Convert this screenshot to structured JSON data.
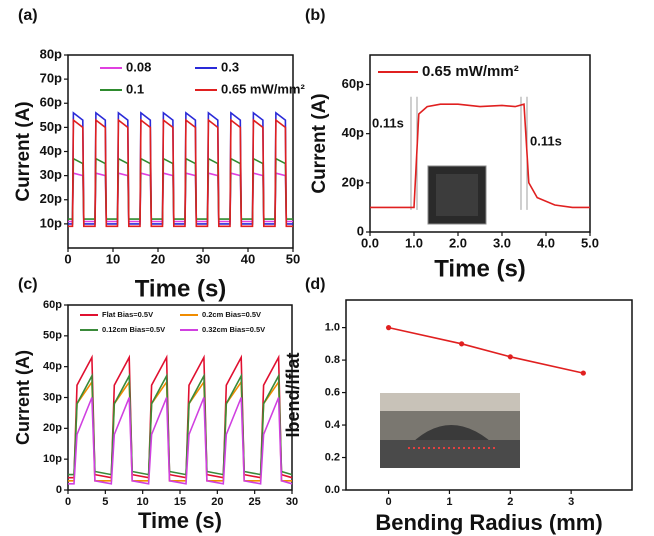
{
  "chart_data": [
    {
      "type": "line",
      "label": "(a)",
      "xlabel": "Time (s)",
      "ylabel": "Current (A)",
      "xlim": [
        0,
        50
      ],
      "xticks": [
        0,
        10,
        20,
        30,
        40,
        50
      ],
      "ylim": [
        0,
        8e-11
      ],
      "yticks": [
        {
          "value": 1e-11,
          "label": "10p"
        },
        {
          "value": 2e-11,
          "label": "20p"
        },
        {
          "value": 3e-11,
          "label": "30p"
        },
        {
          "value": 4e-11,
          "label": "40p"
        },
        {
          "value": 5e-11,
          "label": "50p"
        },
        {
          "value": 6e-11,
          "label": "60p"
        },
        {
          "value": 7e-11,
          "label": "70p"
        },
        {
          "value": 8e-11,
          "label": "80p"
        }
      ],
      "x": [
        0,
        1,
        1.2,
        3.3,
        3.5,
        6,
        6.2,
        8.3,
        8.5,
        11,
        11.2,
        13.3,
        13.5,
        16,
        16.2,
        18.3,
        18.5,
        21,
        21.2,
        23.3,
        23.5,
        26,
        26.2,
        28.3,
        28.5,
        31,
        31.2,
        33.3,
        33.5,
        36,
        36.2,
        38.3,
        38.5,
        41,
        41.2,
        43.3,
        43.5,
        46,
        46.2,
        48.3,
        48.5,
        50
      ],
      "series": [
        {
          "name": "0.08",
          "color": "#e040e0",
          "values": [
            1.1e-11,
            1.1e-11,
            3.1e-11,
            3e-11,
            1.1e-11,
            1.1e-11,
            3.1e-11,
            3e-11,
            1.1e-11,
            1.1e-11,
            3.1e-11,
            3e-11,
            1.1e-11,
            1.1e-11,
            3.1e-11,
            3e-11,
            1.1e-11,
            1.1e-11,
            3.1e-11,
            3e-11,
            1.1e-11,
            1.1e-11,
            3.1e-11,
            3e-11,
            1.1e-11,
            1.1e-11,
            3.1e-11,
            3e-11,
            1.1e-11,
            1.1e-11,
            3.1e-11,
            3e-11,
            1.1e-11,
            1.1e-11,
            3.1e-11,
            3e-11,
            1.1e-11,
            1.1e-11,
            3.1e-11,
            3e-11,
            1.1e-11,
            1.1e-11
          ]
        },
        {
          "name": "0.3",
          "color": "#2a2ad8",
          "values": [
            1e-11,
            1e-11,
            5.6e-11,
            5.3e-11,
            1e-11,
            1e-11,
            5.6e-11,
            5.3e-11,
            1e-11,
            1e-11,
            5.6e-11,
            5.3e-11,
            1e-11,
            1e-11,
            5.6e-11,
            5.3e-11,
            1e-11,
            1e-11,
            5.6e-11,
            5.3e-11,
            1e-11,
            1e-11,
            5.6e-11,
            5.3e-11,
            1e-11,
            1e-11,
            5.6e-11,
            5.3e-11,
            1e-11,
            1e-11,
            5.6e-11,
            5.3e-11,
            1e-11,
            1e-11,
            5.6e-11,
            5.3e-11,
            1e-11,
            1e-11,
            5.6e-11,
            5.3e-11,
            1e-11,
            1e-11
          ]
        },
        {
          "name": "0.1",
          "color": "#2e8b2e",
          "values": [
            1.2e-11,
            1.2e-11,
            3.7e-11,
            3.5e-11,
            1.2e-11,
            1.2e-11,
            3.7e-11,
            3.5e-11,
            1.2e-11,
            1.2e-11,
            3.7e-11,
            3.5e-11,
            1.2e-11,
            1.2e-11,
            3.7e-11,
            3.5e-11,
            1.2e-11,
            1.2e-11,
            3.7e-11,
            3.5e-11,
            1.2e-11,
            1.2e-11,
            3.7e-11,
            3.5e-11,
            1.2e-11,
            1.2e-11,
            3.7e-11,
            3.5e-11,
            1.2e-11,
            1.2e-11,
            3.7e-11,
            3.5e-11,
            1.2e-11,
            1.2e-11,
            3.7e-11,
            3.5e-11,
            1.2e-11,
            1.2e-11,
            3.7e-11,
            3.5e-11,
            1.2e-11,
            1.2e-11
          ]
        },
        {
          "name": "0.65 mW/mm²",
          "color": "#e02020",
          "values": [
            9e-12,
            9e-12,
            5.3e-11,
            5e-11,
            9e-12,
            9e-12,
            5.3e-11,
            5e-11,
            9e-12,
            9e-12,
            5.3e-11,
            5e-11,
            9e-12,
            9e-12,
            5.3e-11,
            5e-11,
            9e-12,
            9e-12,
            5.3e-11,
            5e-11,
            9e-12,
            9e-12,
            5.3e-11,
            5e-11,
            9e-12,
            9e-12,
            5.3e-11,
            5e-11,
            9e-12,
            9e-12,
            5.3e-11,
            5e-11,
            9e-12,
            9e-12,
            5.3e-11,
            5e-11,
            9e-12,
            9e-12,
            5.3e-11,
            5e-11,
            9e-12,
            9e-12
          ]
        }
      ]
    },
    {
      "type": "line",
      "label": "(b)",
      "xlabel": "Time (s)",
      "ylabel": "Current (A)",
      "xlim": [
        0,
        5
      ],
      "xticks": [
        {
          "value": 0,
          "label": "0.0"
        },
        {
          "value": 1,
          "label": "1.0"
        },
        {
          "value": 2,
          "label": "2.0"
        },
        {
          "value": 3,
          "label": "3.0"
        },
        {
          "value": 4,
          "label": "4.0"
        },
        {
          "value": 5,
          "label": "5.0"
        }
      ],
      "ylim": [
        0,
        7.2e-11
      ],
      "yticks": [
        0,
        {
          "value": 2e-11,
          "label": "20p"
        },
        {
          "value": 4e-11,
          "label": "40p"
        },
        {
          "value": 6e-11,
          "label": "60p"
        }
      ],
      "x": [
        0,
        0.5,
        1.0,
        1.11,
        1.3,
        1.6,
        2.0,
        2.5,
        3.0,
        3.3,
        3.5,
        3.61,
        3.8,
        4.2,
        4.6,
        5.0
      ],
      "series": [
        {
          "name": "0.65 mW/mm²",
          "color": "#e02020",
          "values": [
            1e-11,
            1e-11,
            1e-11,
            4.8e-11,
            5.1e-11,
            5.2e-11,
            5.2e-11,
            5.1e-11,
            5.15e-11,
            5.1e-11,
            5.2e-11,
            2e-11,
            1.4e-11,
            1.1e-11,
            1e-11,
            1e-11
          ]
        }
      ],
      "annotations": [
        "0.11s",
        "0.11s"
      ]
    },
    {
      "type": "line",
      "label": "(c)",
      "xlabel": "Time (s)",
      "ylabel": "Current (A)",
      "xlim": [
        0,
        30
      ],
      "xticks": [
        0,
        5,
        10,
        15,
        20,
        25,
        30
      ],
      "ylim": [
        0,
        6e-11
      ],
      "yticks": [
        0,
        {
          "value": 1e-11,
          "label": "10p"
        },
        {
          "value": 2e-11,
          "label": "20p"
        },
        {
          "value": 3e-11,
          "label": "30p"
        },
        {
          "value": 4e-11,
          "label": "40p"
        },
        {
          "value": 5e-11,
          "label": "50p"
        },
        {
          "value": 6e-11,
          "label": "60p"
        }
      ],
      "x": [
        0,
        0.8,
        1.2,
        3.2,
        3.6,
        5.8,
        6.2,
        8.2,
        8.6,
        10.8,
        11.2,
        13.2,
        13.6,
        15.8,
        16.2,
        18.2,
        18.6,
        20.8,
        21.2,
        23.2,
        23.6,
        25.8,
        26.2,
        28.2,
        28.6,
        30
      ],
      "series": [
        {
          "name": "Flat Bias=0.5V",
          "color": "#e01030",
          "values": [
            4e-12,
            4e-12,
            3.4e-11,
            4.3e-11,
            5e-12,
            4e-12,
            3.4e-11,
            4.3e-11,
            5e-12,
            4e-12,
            3.4e-11,
            4.3e-11,
            5e-12,
            4e-12,
            3.4e-11,
            4.3e-11,
            5e-12,
            4e-12,
            3.4e-11,
            4.3e-11,
            5e-12,
            4e-12,
            3.4e-11,
            4.3e-11,
            5e-12,
            4e-12
          ]
        },
        {
          "name": "0.2cm Bias=0.5V",
          "color": "#f08c00",
          "values": [
            3e-12,
            3e-12,
            2.8e-11,
            3.5e-11,
            3e-12,
            3e-12,
            2.8e-11,
            3.5e-11,
            3e-12,
            3e-12,
            2.8e-11,
            3.5e-11,
            3e-12,
            3e-12,
            2.8e-11,
            3.5e-11,
            3e-12,
            3e-12,
            2.8e-11,
            3.5e-11,
            3e-12,
            3e-12,
            2.8e-11,
            3.5e-11,
            3e-12,
            3e-12
          ]
        },
        {
          "name": "0.12cm  Bias=0.5V",
          "color": "#3a8a3a",
          "values": [
            5e-12,
            5e-12,
            2.8e-11,
            3.7e-11,
            6e-12,
            5e-12,
            2.8e-11,
            3.7e-11,
            6e-12,
            5e-12,
            2.8e-11,
            3.7e-11,
            6e-12,
            5e-12,
            2.8e-11,
            3.7e-11,
            6e-12,
            5e-12,
            2.8e-11,
            3.7e-11,
            6e-12,
            5e-12,
            2.8e-11,
            3.7e-11,
            6e-12,
            5e-12
          ]
        },
        {
          "name": "0.32cm Bias=0.5V",
          "color": "#d040e0",
          "values": [
            2e-12,
            2e-12,
            1.8e-11,
            3e-11,
            3e-12,
            2e-12,
            1.8e-11,
            3e-11,
            3e-12,
            2e-12,
            1.8e-11,
            3e-11,
            3e-12,
            2e-12,
            1.8e-11,
            3e-11,
            3e-12,
            2e-12,
            1.8e-11,
            3e-11,
            3e-12,
            2e-12,
            1.8e-11,
            3e-11,
            3e-12,
            2e-12
          ]
        }
      ]
    },
    {
      "type": "line",
      "label": "(d)",
      "xlabel": "Bending Radius (mm)",
      "ylabel": "Ibend/Iflat",
      "xlim": [
        -0.7,
        4
      ],
      "xticks": [
        0,
        1,
        2,
        3
      ],
      "ylim": [
        0,
        1.17
      ],
      "yticks": [
        {
          "value": 0,
          "label": "0.0"
        },
        0.2,
        0.4,
        0.6,
        0.8,
        {
          "value": 1,
          "label": "1.0"
        }
      ],
      "x": [
        0,
        1.2,
        2,
        3.2
      ],
      "series": [
        {
          "color": "#e02020",
          "values": [
            1.0,
            0.9,
            0.82,
            0.72
          ]
        }
      ],
      "markers": true
    }
  ]
}
